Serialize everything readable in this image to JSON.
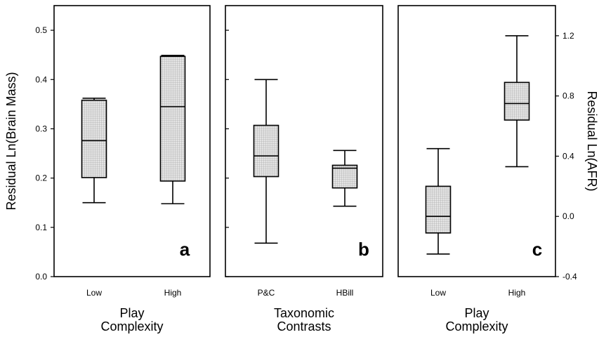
{
  "chart_data": [
    {
      "type": "boxplot",
      "panel_letter": "a",
      "ylabel": "Residual Ln(Brain Mass)",
      "xlabel_lines": [
        "Play",
        "Complexity"
      ],
      "ylim": [
        0.0,
        0.55
      ],
      "yticks": [
        0.0,
        0.1,
        0.2,
        0.3,
        0.4,
        0.5
      ],
      "ytick_labels": [
        "0.0",
        "0.1",
        "0.2",
        "0.3",
        "0.4",
        "0.5"
      ],
      "categories": [
        "Low",
        "High"
      ],
      "boxes": [
        {
          "whisker_low": 0.15,
          "q1": 0.201,
          "median": 0.276,
          "q3": 0.358,
          "whisker_high": 0.362
        },
        {
          "whisker_low": 0.148,
          "q1": 0.194,
          "median": 0.345,
          "q3": 0.447,
          "whisker_high": 0.449
        }
      ]
    },
    {
      "type": "boxplot",
      "panel_letter": "b",
      "xlabel_lines": [
        "Taxonomic",
        "Contrasts"
      ],
      "ylim": [
        0.0,
        0.55
      ],
      "yticks": [
        0.0,
        0.1,
        0.2,
        0.3,
        0.4,
        0.5
      ],
      "categories": [
        "P&C",
        "HBill"
      ],
      "boxes": [
        {
          "whisker_low": 0.068,
          "q1": 0.203,
          "median": 0.245,
          "q3": 0.307,
          "whisker_high": 0.4
        },
        {
          "whisker_low": 0.143,
          "q1": 0.18,
          "median": 0.22,
          "q3": 0.226,
          "whisker_high": 0.256
        }
      ]
    },
    {
      "type": "boxplot",
      "panel_letter": "c",
      "ylabel": "Residual Ln(AFR)",
      "xlabel_lines": [
        "Play",
        "Complexity"
      ],
      "ylim": [
        -0.4,
        1.4
      ],
      "yticks": [
        -0.4,
        0.0,
        0.4,
        0.8,
        1.2
      ],
      "ytick_labels": [
        "-0.4",
        "0.0",
        "0.4",
        "0.8",
        "1.2"
      ],
      "categories": [
        "Low",
        "High"
      ],
      "boxes": [
        {
          "whisker_low": -0.25,
          "q1": -0.11,
          "median": 0.0,
          "q3": 0.2,
          "whisker_high": 0.45
        },
        {
          "whisker_low": 0.33,
          "q1": 0.64,
          "median": 0.75,
          "q3": 0.89,
          "whisker_high": 1.2
        }
      ]
    }
  ],
  "colors": {
    "box_fill": "#d8d8d8",
    "grid_line": "#9a9a9a",
    "stroke": "#000000"
  }
}
